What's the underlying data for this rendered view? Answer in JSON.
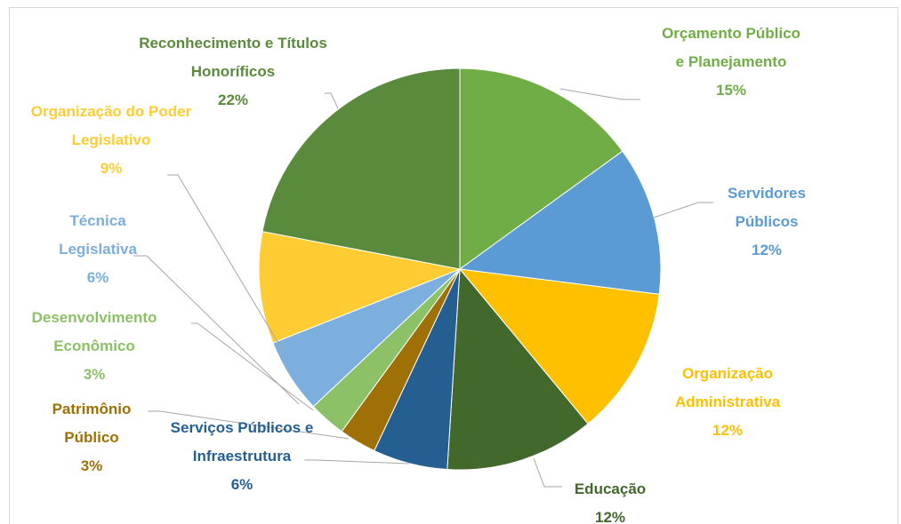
{
  "chart_data": {
    "type": "pie",
    "categories": [
      "Orçamento Público e Planejamento",
      "Servidores Públicos",
      "Organização Administrativa",
      "Educação",
      "Serviços Públicos e Infraestrutura",
      "Patrimônio Público",
      "Desenvolvimento Econômico",
      "Técnica Legislativa",
      "Organização do Poder Legislativo",
      "Reconhecimento e Títulos Honoríficos"
    ],
    "values": [
      15,
      12,
      12,
      12,
      6,
      3,
      3,
      6,
      9,
      22
    ],
    "value_labels": [
      "15%",
      "12%",
      "12%",
      "12%",
      "6%",
      "3%",
      "3%",
      "6%",
      "9%",
      "22%"
    ],
    "colors": [
      "#70ad47",
      "#5b9bd5",
      "#ffc000",
      "#43682b",
      "#255e91",
      "#9e7005",
      "#8cc168",
      "#7cafdd",
      "#ffcd33",
      "#5a8a3c"
    ]
  }
}
